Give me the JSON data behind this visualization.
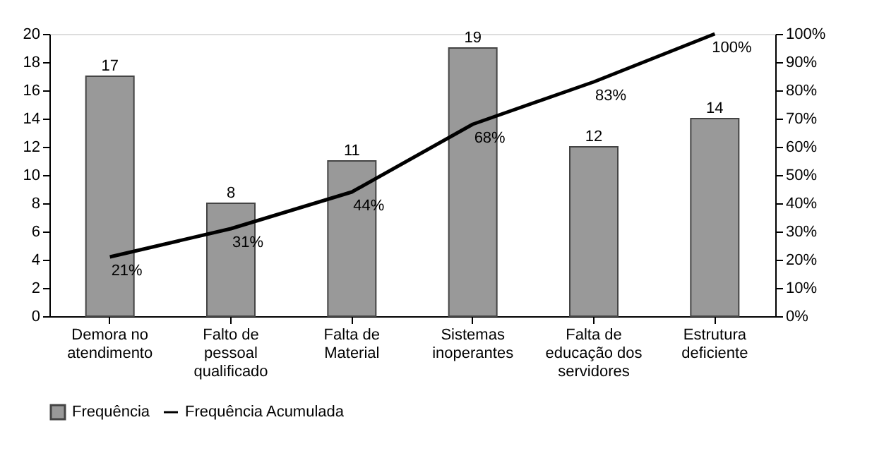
{
  "chart_data": {
    "type": "bar",
    "categories": [
      "Demora no\natendimento",
      "Falto de\npessoal\nqualificado",
      "Falta de\nMaterial",
      "Sistemas\ninoperantes",
      "Falta de\neducação dos\nservidores",
      "Estrutura\ndeficiente"
    ],
    "series": [
      {
        "name": "Frequência",
        "color": "#999999",
        "values": [
          17,
          8,
          11,
          19,
          12,
          14
        ],
        "value_labels": [
          "17",
          "8",
          "11",
          "19",
          "12",
          "14"
        ]
      },
      {
        "name": "Frequência Acumulada",
        "type": "line",
        "axis": "y2",
        "color": "#000000",
        "values": [
          21,
          31,
          44,
          68,
          83,
          100
        ],
        "value_labels": [
          "21%",
          "31%",
          "44%",
          "68%",
          "83%",
          "100%"
        ]
      }
    ],
    "ylim": [
      0,
      20
    ],
    "yticks": [
      0,
      2,
      4,
      6,
      8,
      10,
      12,
      14,
      16,
      18,
      20
    ],
    "y2lim": [
      0,
      100
    ],
    "y2ticks": [
      {
        "value": 0,
        "label": "0%"
      },
      {
        "value": 10,
        "label": "10%"
      },
      {
        "value": 20,
        "label": "20%"
      },
      {
        "value": 30,
        "label": "30%"
      },
      {
        "value": 40,
        "label": "40%"
      },
      {
        "value": 50,
        "label": "50%"
      },
      {
        "value": 60,
        "label": "60%"
      },
      {
        "value": 70,
        "label": "70%"
      },
      {
        "value": 80,
        "label": "80%"
      },
      {
        "value": 90,
        "label": "90%"
      },
      {
        "value": 100,
        "label": "100%"
      }
    ],
    "legend": "bottom",
    "grid": false
  }
}
